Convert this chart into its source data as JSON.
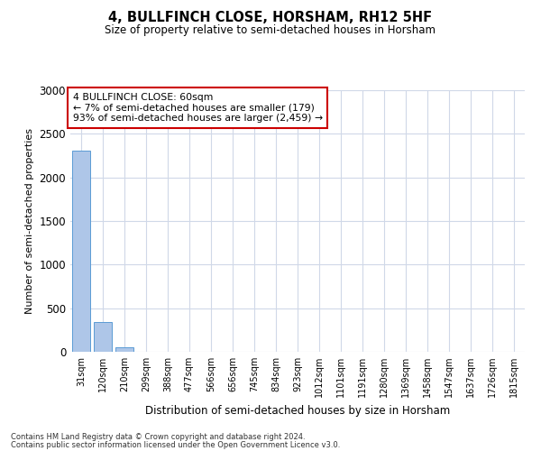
{
  "title": "4, BULLFINCH CLOSE, HORSHAM, RH12 5HF",
  "subtitle": "Size of property relative to semi-detached houses in Horsham",
  "xlabel": "Distribution of semi-detached houses by size in Horsham",
  "ylabel": "Number of semi-detached properties",
  "categories": [
    "31sqm",
    "120sqm",
    "210sqm",
    "299sqm",
    "388sqm",
    "477sqm",
    "566sqm",
    "656sqm",
    "745sqm",
    "834sqm",
    "923sqm",
    "1012sqm",
    "1101sqm",
    "1191sqm",
    "1280sqm",
    "1369sqm",
    "1458sqm",
    "1547sqm",
    "1637sqm",
    "1726sqm",
    "1815sqm"
  ],
  "values": [
    2310,
    340,
    50,
    5,
    3,
    2,
    1,
    1,
    1,
    0,
    0,
    0,
    0,
    0,
    0,
    0,
    0,
    0,
    0,
    0,
    0
  ],
  "bar_color": "#aec6e8",
  "bar_edge_color": "#5b9bd5",
  "ylim": [
    0,
    3000
  ],
  "yticks": [
    0,
    500,
    1000,
    1500,
    2000,
    2500,
    3000
  ],
  "annotation_text": "4 BULLFINCH CLOSE: 60sqm\n← 7% of semi-detached houses are smaller (179)\n93% of semi-detached houses are larger (2,459) →",
  "annotation_box_color": "#ffffff",
  "annotation_border_color": "#cc0000",
  "footnote1": "Contains HM Land Registry data © Crown copyright and database right 2024.",
  "footnote2": "Contains public sector information licensed under the Open Government Licence v3.0.",
  "grid_color": "#d0d8e8",
  "background_color": "#ffffff"
}
